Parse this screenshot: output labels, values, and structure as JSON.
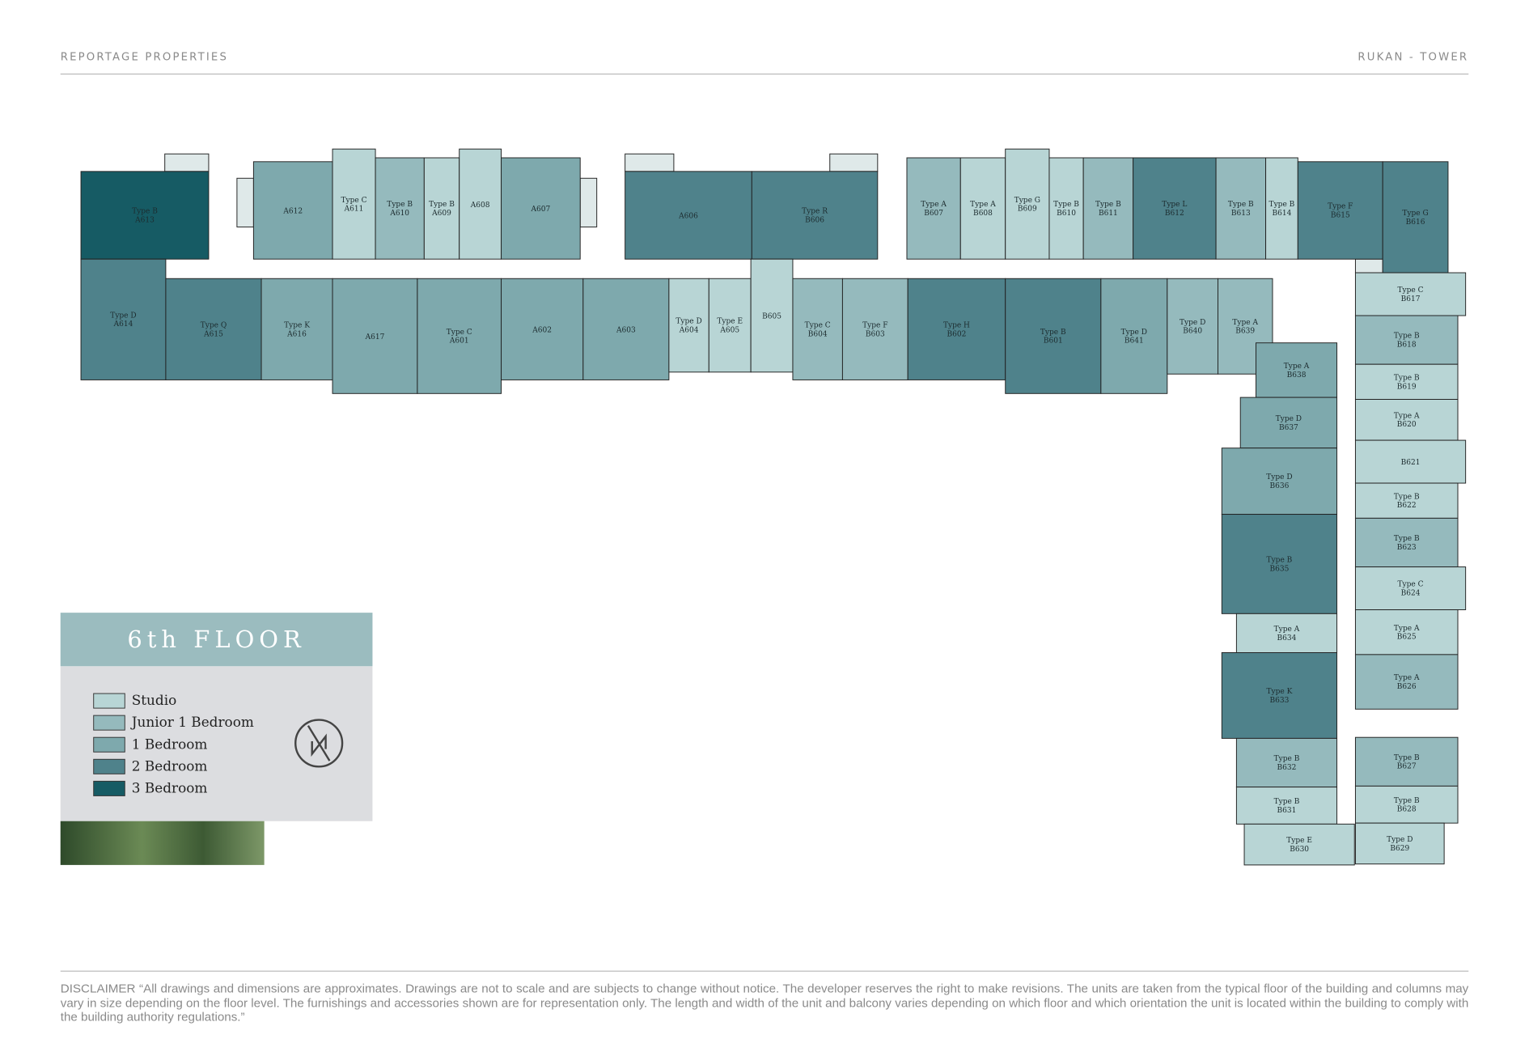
{
  "header": {
    "left": "REPORTAGE PROPERTIES",
    "right": "RUKAN - TOWER"
  },
  "legend": {
    "title": "6th FLOOR",
    "items": [
      {
        "label": "Studio",
        "color": "#b8d5d5"
      },
      {
        "label": "Junior 1 Bedroom",
        "color": "#95babd"
      },
      {
        "label": "1 Bedroom",
        "color": "#7ea9ad"
      },
      {
        "label": "2 Bedroom",
        "color": "#4f828b"
      },
      {
        "label": "3 Bedroom",
        "color": "#165b64"
      }
    ]
  },
  "units": [
    {
      "type": "Type B",
      "name": "A613",
      "color": "#165b64"
    },
    {
      "name": "A612",
      "color": "#7ea9ad"
    },
    {
      "type": "Type C",
      "name": "A611",
      "color": "#b8d5d5"
    },
    {
      "type": "Type B",
      "name": "A610",
      "color": "#95babd"
    },
    {
      "type": "Type B",
      "name": "A609",
      "color": "#b8d5d5"
    },
    {
      "name": "A608",
      "color": "#b8d5d5"
    },
    {
      "name": "A607",
      "color": "#7ea9ad"
    },
    {
      "name": "A606",
      "color": "#4f828b"
    },
    {
      "type": "Type R",
      "name": "B606",
      "color": "#4f828b"
    },
    {
      "type": "Type A",
      "name": "B607",
      "color": "#95babd"
    },
    {
      "type": "Type A",
      "name": "B608",
      "color": "#b8d5d5"
    },
    {
      "type": "Type G",
      "name": "B609",
      "color": "#b8d5d5"
    },
    {
      "type": "Type B",
      "name": "B610",
      "color": "#b8d5d5"
    },
    {
      "type": "Type B",
      "name": "B611",
      "color": "#95babd"
    },
    {
      "type": "Type L",
      "name": "B612",
      "color": "#4f828b"
    },
    {
      "type": "Type B",
      "name": "B613",
      "color": "#95babd"
    },
    {
      "type": "Type B",
      "name": "B614",
      "color": "#b8d5d5"
    },
    {
      "type": "Type F",
      "name": "B615",
      "color": "#4f828b"
    },
    {
      "type": "Type G",
      "name": "B616",
      "color": "#4f828b"
    },
    {
      "type": "Type D",
      "name": "A614",
      "color": "#4f828b"
    },
    {
      "type": "Type Q",
      "name": "A615",
      "color": "#4f828b"
    },
    {
      "type": "Type K",
      "name": "A616",
      "color": "#7ea9ad"
    },
    {
      "name": "A617",
      "color": "#7ea9ad"
    },
    {
      "type": "Type C",
      "name": "A601",
      "color": "#7ea9ad"
    },
    {
      "name": "A602",
      "color": "#7ea9ad"
    },
    {
      "name": "A603",
      "color": "#7ea9ad"
    },
    {
      "type": "Type D",
      "name": "A604",
      "color": "#b8d5d5"
    },
    {
      "type": "Type E",
      "name": "A605",
      "color": "#b8d5d5"
    },
    {
      "name": "B605",
      "color": "#b8d5d5"
    },
    {
      "type": "Type C",
      "name": "B604",
      "color": "#95babd"
    },
    {
      "type": "Type F",
      "name": "B603",
      "color": "#95babd"
    },
    {
      "type": "Type H",
      "name": "B602",
      "color": "#4f828b"
    },
    {
      "type": "Type B",
      "name": "B601",
      "color": "#4f828b"
    },
    {
      "type": "Type D",
      "name": "B641",
      "color": "#7ea9ad"
    },
    {
      "type": "Type D",
      "name": "B640",
      "color": "#95babd"
    },
    {
      "type": "Type A",
      "name": "B639",
      "color": "#95babd"
    },
    {
      "type": "Type A",
      "name": "B638",
      "color": "#7ea9ad"
    },
    {
      "type": "Type D",
      "name": "B637",
      "color": "#7ea9ad"
    },
    {
      "type": "Type D",
      "name": "B636",
      "color": "#7ea9ad"
    },
    {
      "type": "Type B",
      "name": "B635",
      "color": "#4f828b"
    },
    {
      "type": "Type A",
      "name": "B634",
      "color": "#b8d5d5"
    },
    {
      "type": "Type K",
      "name": "B633",
      "color": "#4f828b"
    },
    {
      "type": "Type B",
      "name": "B632",
      "color": "#95babd"
    },
    {
      "type": "Type B",
      "name": "B631",
      "color": "#b8d5d5"
    },
    {
      "type": "Type E",
      "name": "B630",
      "color": "#b8d5d5"
    },
    {
      "type": "Type C",
      "name": "B617",
      "color": "#b8d5d5"
    },
    {
      "type": "Type B",
      "name": "B618",
      "color": "#95babd"
    },
    {
      "type": "Type B",
      "name": "B619",
      "color": "#b8d5d5"
    },
    {
      "type": "Type A",
      "name": "B620",
      "color": "#b8d5d5"
    },
    {
      "name": "B621",
      "color": "#b8d5d5"
    },
    {
      "type": "Type B",
      "name": "B622",
      "color": "#b8d5d5"
    },
    {
      "type": "Type B",
      "name": "B623",
      "color": "#95babd"
    },
    {
      "type": "Type C",
      "name": "B624",
      "color": "#b8d5d5"
    },
    {
      "type": "Type A",
      "name": "B625",
      "color": "#b8d5d5"
    },
    {
      "type": "Type A",
      "name": "B626",
      "color": "#95babd"
    },
    {
      "type": "Type B",
      "name": "B627",
      "color": "#95babd"
    },
    {
      "type": "Type B",
      "name": "B628",
      "color": "#b8d5d5"
    },
    {
      "type": "Type D",
      "name": "B629",
      "color": "#b8d5d5"
    }
  ],
  "disclaimer": "DISCLAIMER “All drawings and dimensions are approximates. Drawings are not to scale and are subjects to change without notice. The developer reserves the right to make revisions. The units are taken from the typical floor of the building and columns may vary in size depending on the floor level. The furnishings and accessories shown are for representation only. The length and width of the unit and balcony varies depending on which floor and which orientation the unit is located within the building to comply with the building authority regulations.”"
}
